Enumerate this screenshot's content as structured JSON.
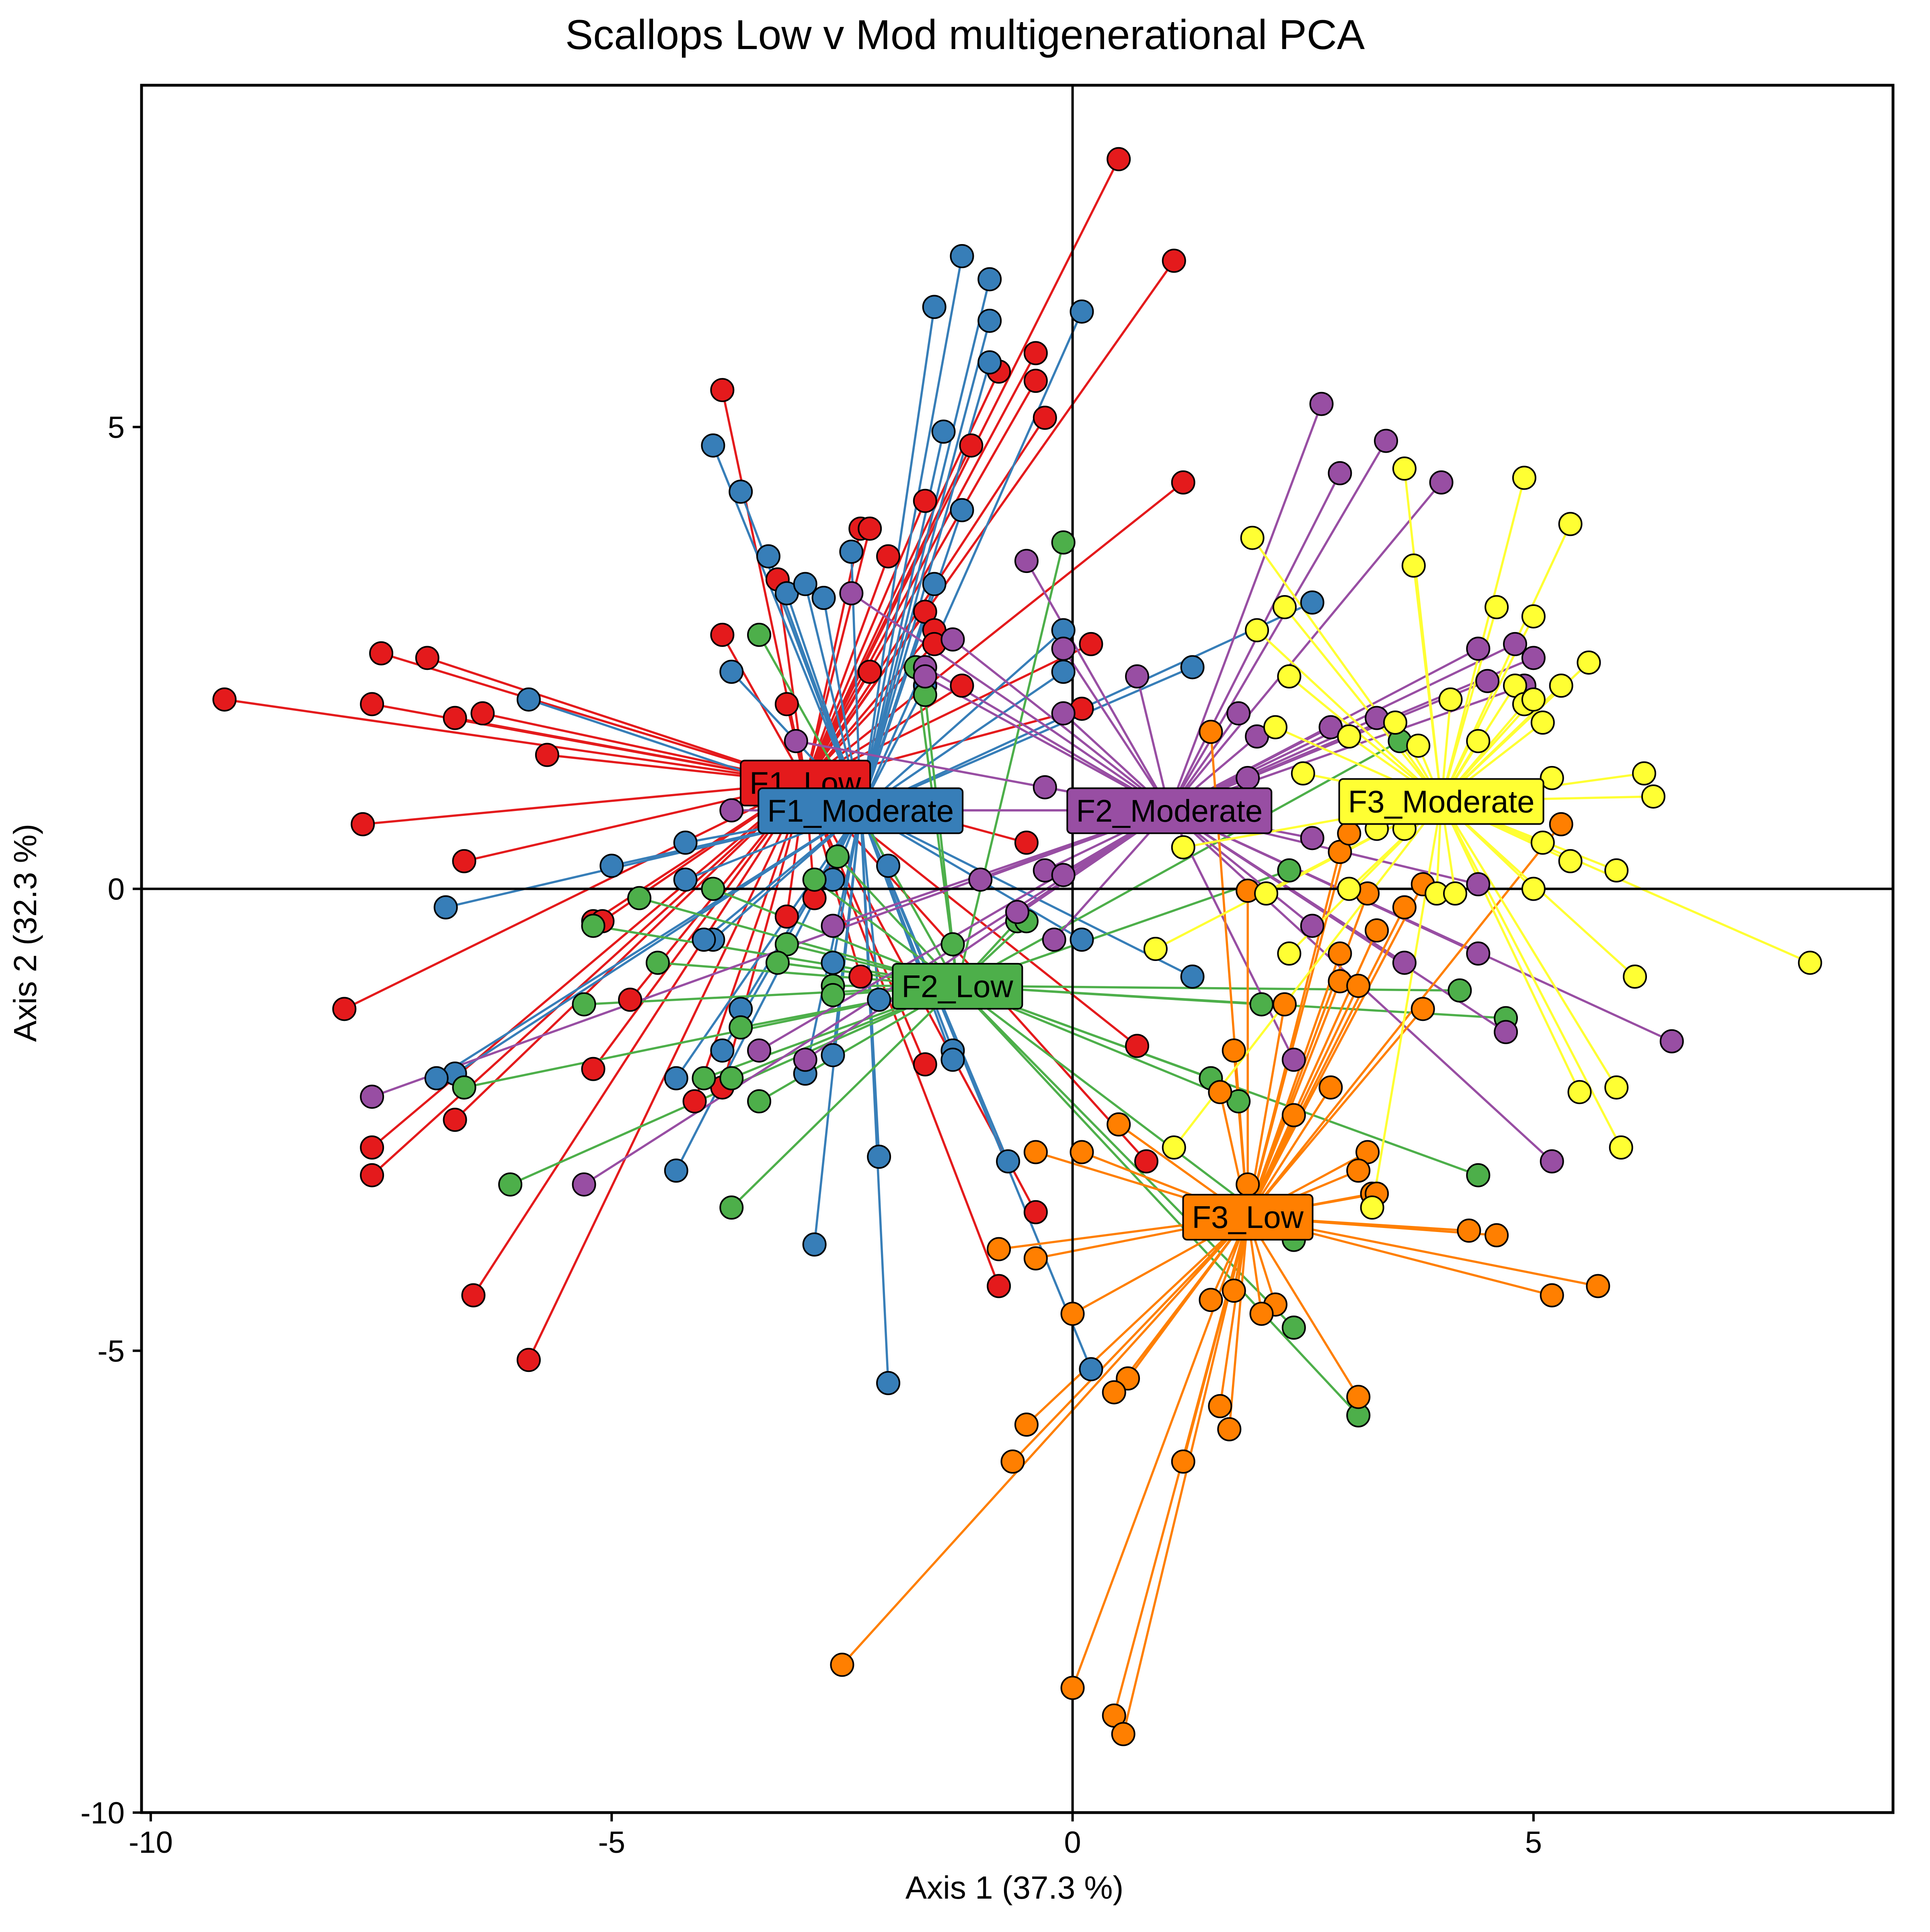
{
  "chart_data": {
    "type": "scatter",
    "title": "Scallops Low v Mod multigenerational PCA",
    "xlabel": "Axis 1 (37.3 %)",
    "ylabel": "Axis 2 (32.3 %)",
    "xlim": [
      -10.1,
      8.9
    ],
    "ylim": [
      -10,
      8.7
    ],
    "xticks": [
      -10,
      -5,
      0,
      5
    ],
    "yticks": [
      -10,
      -5,
      0,
      5
    ],
    "xtick_labels": [
      "-10",
      "-5",
      "0",
      "5"
    ],
    "ytick_labels": [
      "-10",
      "-5",
      "0",
      "5"
    ],
    "grid": false,
    "legend": "none",
    "zero_lines": true,
    "series": [
      {
        "name": "F1_Low",
        "color": "#E41A1C",
        "centroid": [
          -2.9,
          1.15
        ],
        "points": [
          [
            0.5,
            7.9
          ],
          [
            1.1,
            6.8
          ],
          [
            -3.8,
            5.4
          ],
          [
            -0.4,
            5.8
          ],
          [
            -0.8,
            5.6
          ],
          [
            -0.4,
            5.5
          ],
          [
            -0.3,
            5.1
          ],
          [
            -1.1,
            4.8
          ],
          [
            1.2,
            4.4
          ],
          [
            -1.6,
            4.2
          ],
          [
            -2.3,
            3.9
          ],
          [
            -2.2,
            3.9
          ],
          [
            -2.0,
            3.6
          ],
          [
            -3.2,
            3.35
          ],
          [
            -1.6,
            3.0
          ],
          [
            -1.5,
            2.8
          ],
          [
            -3.8,
            2.75
          ],
          [
            0.2,
            2.65
          ],
          [
            -2.2,
            2.35
          ],
          [
            -1.2,
            2.2
          ],
          [
            -3.1,
            2.0
          ],
          [
            0.1,
            1.95
          ],
          [
            -7.0,
            2.5
          ],
          [
            -7.5,
            2.55
          ],
          [
            -9.2,
            2.05
          ],
          [
            -7.6,
            2.0
          ],
          [
            -6.7,
            1.85
          ],
          [
            -6.4,
            1.9
          ],
          [
            -5.7,
            1.45
          ],
          [
            -7.7,
            0.7
          ],
          [
            -6.6,
            0.3
          ],
          [
            -3.1,
            -0.3
          ],
          [
            -5.2,
            -0.35
          ],
          [
            -5.1,
            -0.35
          ],
          [
            -4.8,
            -1.2
          ],
          [
            -7.9,
            -1.3
          ],
          [
            -0.5,
            0.5
          ],
          [
            -2.3,
            -0.95
          ],
          [
            -5.2,
            -1.95
          ],
          [
            -6.7,
            -2.5
          ],
          [
            -7.6,
            -2.8
          ],
          [
            -7.6,
            -3.1
          ],
          [
            -3.8,
            -2.15
          ],
          [
            -4.1,
            -2.3
          ],
          [
            -1.6,
            -1.9
          ],
          [
            0.7,
            -1.7
          ],
          [
            0.8,
            -2.95
          ],
          [
            -0.4,
            -3.5
          ],
          [
            -0.8,
            -4.3
          ],
          [
            -6.5,
            -4.4
          ],
          [
            -5.9,
            -5.1
          ],
          [
            -2.8,
            -0.1
          ],
          [
            -1.5,
            2.65
          ]
        ]
      },
      {
        "name": "F1_Moderate",
        "color": "#377EB8",
        "centroid": [
          -2.3,
          0.85
        ],
        "points": [
          [
            -1.2,
            6.85
          ],
          [
            -0.9,
            6.6
          ],
          [
            -1.5,
            6.3
          ],
          [
            0.1,
            6.25
          ],
          [
            -0.9,
            6.15
          ],
          [
            -0.9,
            5.7
          ],
          [
            -3.9,
            4.8
          ],
          [
            -3.6,
            4.3
          ],
          [
            -1.4,
            4.95
          ],
          [
            -1.2,
            4.1
          ],
          [
            -3.3,
            3.6
          ],
          [
            -2.4,
            3.65
          ],
          [
            -3.1,
            3.2
          ],
          [
            -2.9,
            3.3
          ],
          [
            -2.7,
            3.15
          ],
          [
            -1.5,
            3.3
          ],
          [
            -0.1,
            2.8
          ],
          [
            -0.1,
            2.35
          ],
          [
            -3.7,
            2.35
          ],
          [
            -5.9,
            2.05
          ],
          [
            2.6,
            3.1
          ],
          [
            1.3,
            2.4
          ],
          [
            -5.0,
            0.25
          ],
          [
            -4.2,
            0.5
          ],
          [
            -4.2,
            0.1
          ],
          [
            -6.8,
            -0.2
          ],
          [
            -2.0,
            0.25
          ],
          [
            -2.6,
            0.1
          ],
          [
            -3.9,
            -0.55
          ],
          [
            -4.0,
            -0.55
          ],
          [
            -2.6,
            -0.8
          ],
          [
            -2.1,
            -1.2
          ],
          [
            -3.6,
            -1.3
          ],
          [
            -3.8,
            -1.75
          ],
          [
            -2.6,
            -1.8
          ],
          [
            -2.9,
            -2.0
          ],
          [
            -1.3,
            -1.75
          ],
          [
            -4.3,
            -2.05
          ],
          [
            -6.7,
            -2.0
          ],
          [
            -6.9,
            -2.05
          ],
          [
            -2.1,
            -2.9
          ],
          [
            -4.3,
            -3.05
          ],
          [
            -0.7,
            -2.95
          ],
          [
            -2.8,
            -3.85
          ],
          [
            -1.3,
            -1.85
          ],
          [
            0.1,
            -0.55
          ],
          [
            1.3,
            -0.95
          ],
          [
            0.2,
            -5.2
          ],
          [
            -2.0,
            -5.35
          ],
          [
            -1.6,
            2.2
          ]
        ]
      },
      {
        "name": "F2_Low",
        "color": "#4DAF4A",
        "centroid": [
          -1.25,
          -1.05
        ],
        "points": [
          [
            -0.1,
            3.75
          ],
          [
            -3.4,
            2.75
          ],
          [
            -1.6,
            2.1
          ],
          [
            -2.55,
            0.35
          ],
          [
            -2.8,
            0.1
          ],
          [
            -3.9,
            0.0
          ],
          [
            -4.7,
            -0.1
          ],
          [
            -5.2,
            -0.4
          ],
          [
            -3.1,
            -0.6
          ],
          [
            -4.5,
            -0.8
          ],
          [
            -3.2,
            -0.8
          ],
          [
            -2.6,
            -1.05
          ],
          [
            -2.6,
            -1.15
          ],
          [
            -3.6,
            -1.5
          ],
          [
            -5.3,
            -1.25
          ],
          [
            -0.6,
            -0.35
          ],
          [
            -1.3,
            -0.6
          ],
          [
            -0.5,
            -0.35
          ],
          [
            -4.0,
            -2.05
          ],
          [
            -3.7,
            -2.05
          ],
          [
            -6.6,
            -2.15
          ],
          [
            -3.4,
            -2.3
          ],
          [
            -6.1,
            -3.2
          ],
          [
            -3.7,
            -3.45
          ],
          [
            1.5,
            -2.05
          ],
          [
            1.8,
            -2.3
          ],
          [
            2.05,
            -1.25
          ],
          [
            2.35,
            0.2
          ],
          [
            4.2,
            -1.1
          ],
          [
            4.7,
            -1.4
          ],
          [
            4.4,
            -3.1
          ],
          [
            2.4,
            -3.8
          ],
          [
            2.4,
            -4.75
          ],
          [
            3.1,
            -5.7
          ],
          [
            3.55,
            1.6
          ],
          [
            -1.7,
            2.4
          ]
        ]
      },
      {
        "name": "F2_Moderate",
        "color": "#984EA3",
        "centroid": [
          1.05,
          0.85
        ],
        "points": [
          [
            2.7,
            5.25
          ],
          [
            3.4,
            4.85
          ],
          [
            2.9,
            4.5
          ],
          [
            4.0,
            4.4
          ],
          [
            -0.5,
            3.55
          ],
          [
            -2.4,
            3.2
          ],
          [
            -1.3,
            2.7
          ],
          [
            -0.1,
            2.6
          ],
          [
            0.7,
            2.3
          ],
          [
            4.4,
            2.6
          ],
          [
            4.8,
            2.65
          ],
          [
            5.0,
            2.5
          ],
          [
            4.9,
            2.2
          ],
          [
            4.5,
            2.25
          ],
          [
            3.3,
            1.85
          ],
          [
            1.8,
            1.9
          ],
          [
            2.0,
            1.65
          ],
          [
            1.9,
            1.2
          ],
          [
            -3.0,
            1.6
          ],
          [
            -1.6,
            2.4
          ],
          [
            -1.6,
            2.3
          ],
          [
            -0.3,
            1.1
          ],
          [
            -0.1,
            1.9
          ],
          [
            -3.7,
            0.85
          ],
          [
            -0.3,
            0.2
          ],
          [
            -0.1,
            0.15
          ],
          [
            -1.0,
            0.1
          ],
          [
            -0.6,
            -0.25
          ],
          [
            -0.2,
            -0.55
          ],
          [
            -2.6,
            -0.4
          ],
          [
            -3.4,
            -1.75
          ],
          [
            -2.9,
            -1.85
          ],
          [
            -7.6,
            -2.25
          ],
          [
            -5.3,
            -3.2
          ],
          [
            2.6,
            0.55
          ],
          [
            2.8,
            1.75
          ],
          [
            2.6,
            -0.4
          ],
          [
            2.4,
            -1.85
          ],
          [
            3.6,
            -0.8
          ],
          [
            4.4,
            -0.7
          ],
          [
            4.7,
            -1.55
          ],
          [
            5.2,
            -2.95
          ],
          [
            6.5,
            -1.65
          ],
          [
            4.4,
            0.05
          ],
          [
            -2.4,
            0.85
          ]
        ]
      },
      {
        "name": "F3_Low",
        "color": "#FF7F00",
        "centroid": [
          1.9,
          -3.55
        ],
        "points": [
          [
            1.5,
            1.7
          ],
          [
            1.9,
            -0.02
          ],
          [
            2.9,
            0.4
          ],
          [
            3.0,
            0.6
          ],
          [
            3.8,
            0.05
          ],
          [
            5.3,
            0.7
          ],
          [
            3.2,
            -0.05
          ],
          [
            3.6,
            -0.2
          ],
          [
            2.9,
            -0.7
          ],
          [
            3.3,
            -0.45
          ],
          [
            2.9,
            -1.0
          ],
          [
            3.1,
            -1.05
          ],
          [
            1.75,
            -1.75
          ],
          [
            2.3,
            -1.25
          ],
          [
            3.8,
            -1.3
          ],
          [
            1.6,
            -2.2
          ],
          [
            2.4,
            -2.45
          ],
          [
            2.8,
            -2.15
          ],
          [
            0.5,
            -2.55
          ],
          [
            -0.4,
            -2.85
          ],
          [
            0.1,
            -2.85
          ],
          [
            3.2,
            -2.85
          ],
          [
            3.1,
            -3.05
          ],
          [
            3.25,
            -3.3
          ],
          [
            3.3,
            -3.3
          ],
          [
            1.9,
            -3.2
          ],
          [
            4.3,
            -3.7
          ],
          [
            4.6,
            -3.75
          ],
          [
            -0.8,
            -3.9
          ],
          [
            -0.4,
            -4.0
          ],
          [
            5.7,
            -4.3
          ],
          [
            5.2,
            -4.4
          ],
          [
            1.5,
            -4.45
          ],
          [
            1.75,
            -4.35
          ],
          [
            2.2,
            -4.5
          ],
          [
            2.05,
            -4.6
          ],
          [
            0.0,
            -4.6
          ],
          [
            0.6,
            -5.3
          ],
          [
            0.45,
            -5.45
          ],
          [
            1.6,
            -5.6
          ],
          [
            1.7,
            -5.85
          ],
          [
            3.1,
            -5.5
          ],
          [
            -0.5,
            -5.8
          ],
          [
            -0.65,
            -6.2
          ],
          [
            1.2,
            -6.2
          ],
          [
            -2.5,
            -8.4
          ],
          [
            0.0,
            -8.65
          ],
          [
            0.45,
            -8.95
          ],
          [
            0.55,
            -9.15
          ]
        ]
      },
      {
        "name": "F3_Moderate",
        "color": "#FFFF33",
        "centroid": [
          4.0,
          0.95
        ],
        "points": [
          [
            1.95,
            3.8
          ],
          [
            3.6,
            4.55
          ],
          [
            3.7,
            3.5
          ],
          [
            4.9,
            4.45
          ],
          [
            5.4,
            3.95
          ],
          [
            2.3,
            3.05
          ],
          [
            2.0,
            2.8
          ],
          [
            4.6,
            3.05
          ],
          [
            5.0,
            2.95
          ],
          [
            4.8,
            2.2
          ],
          [
            4.9,
            2.0
          ],
          [
            5.0,
            2.05
          ],
          [
            5.3,
            2.2
          ],
          [
            5.6,
            2.45
          ],
          [
            4.1,
            2.05
          ],
          [
            2.35,
            2.3
          ],
          [
            2.2,
            1.75
          ],
          [
            3.0,
            1.65
          ],
          [
            3.5,
            1.8
          ],
          [
            3.75,
            1.55
          ],
          [
            4.4,
            1.6
          ],
          [
            5.1,
            1.8
          ],
          [
            6.2,
            1.25
          ],
          [
            6.3,
            1.0
          ],
          [
            5.2,
            1.2
          ],
          [
            4.6,
            0.95
          ],
          [
            5.1,
            0.5
          ],
          [
            5.4,
            0.3
          ],
          [
            5.0,
            0.0
          ],
          [
            5.9,
            0.2
          ],
          [
            8.0,
            -0.8
          ],
          [
            6.1,
            -0.95
          ],
          [
            5.5,
            -2.2
          ],
          [
            5.9,
            -2.15
          ],
          [
            5.95,
            -2.8
          ],
          [
            1.1,
            -2.8
          ],
          [
            0.9,
            -0.65
          ],
          [
            1.2,
            0.45
          ],
          [
            2.1,
            -0.05
          ],
          [
            2.35,
            -0.7
          ],
          [
            3.0,
            0.0
          ],
          [
            3.3,
            0.65
          ],
          [
            3.6,
            0.65
          ],
          [
            3.95,
            -0.05
          ],
          [
            4.15,
            -0.05
          ],
          [
            3.25,
            -3.45
          ],
          [
            2.5,
            1.25
          ]
        ]
      }
    ]
  }
}
